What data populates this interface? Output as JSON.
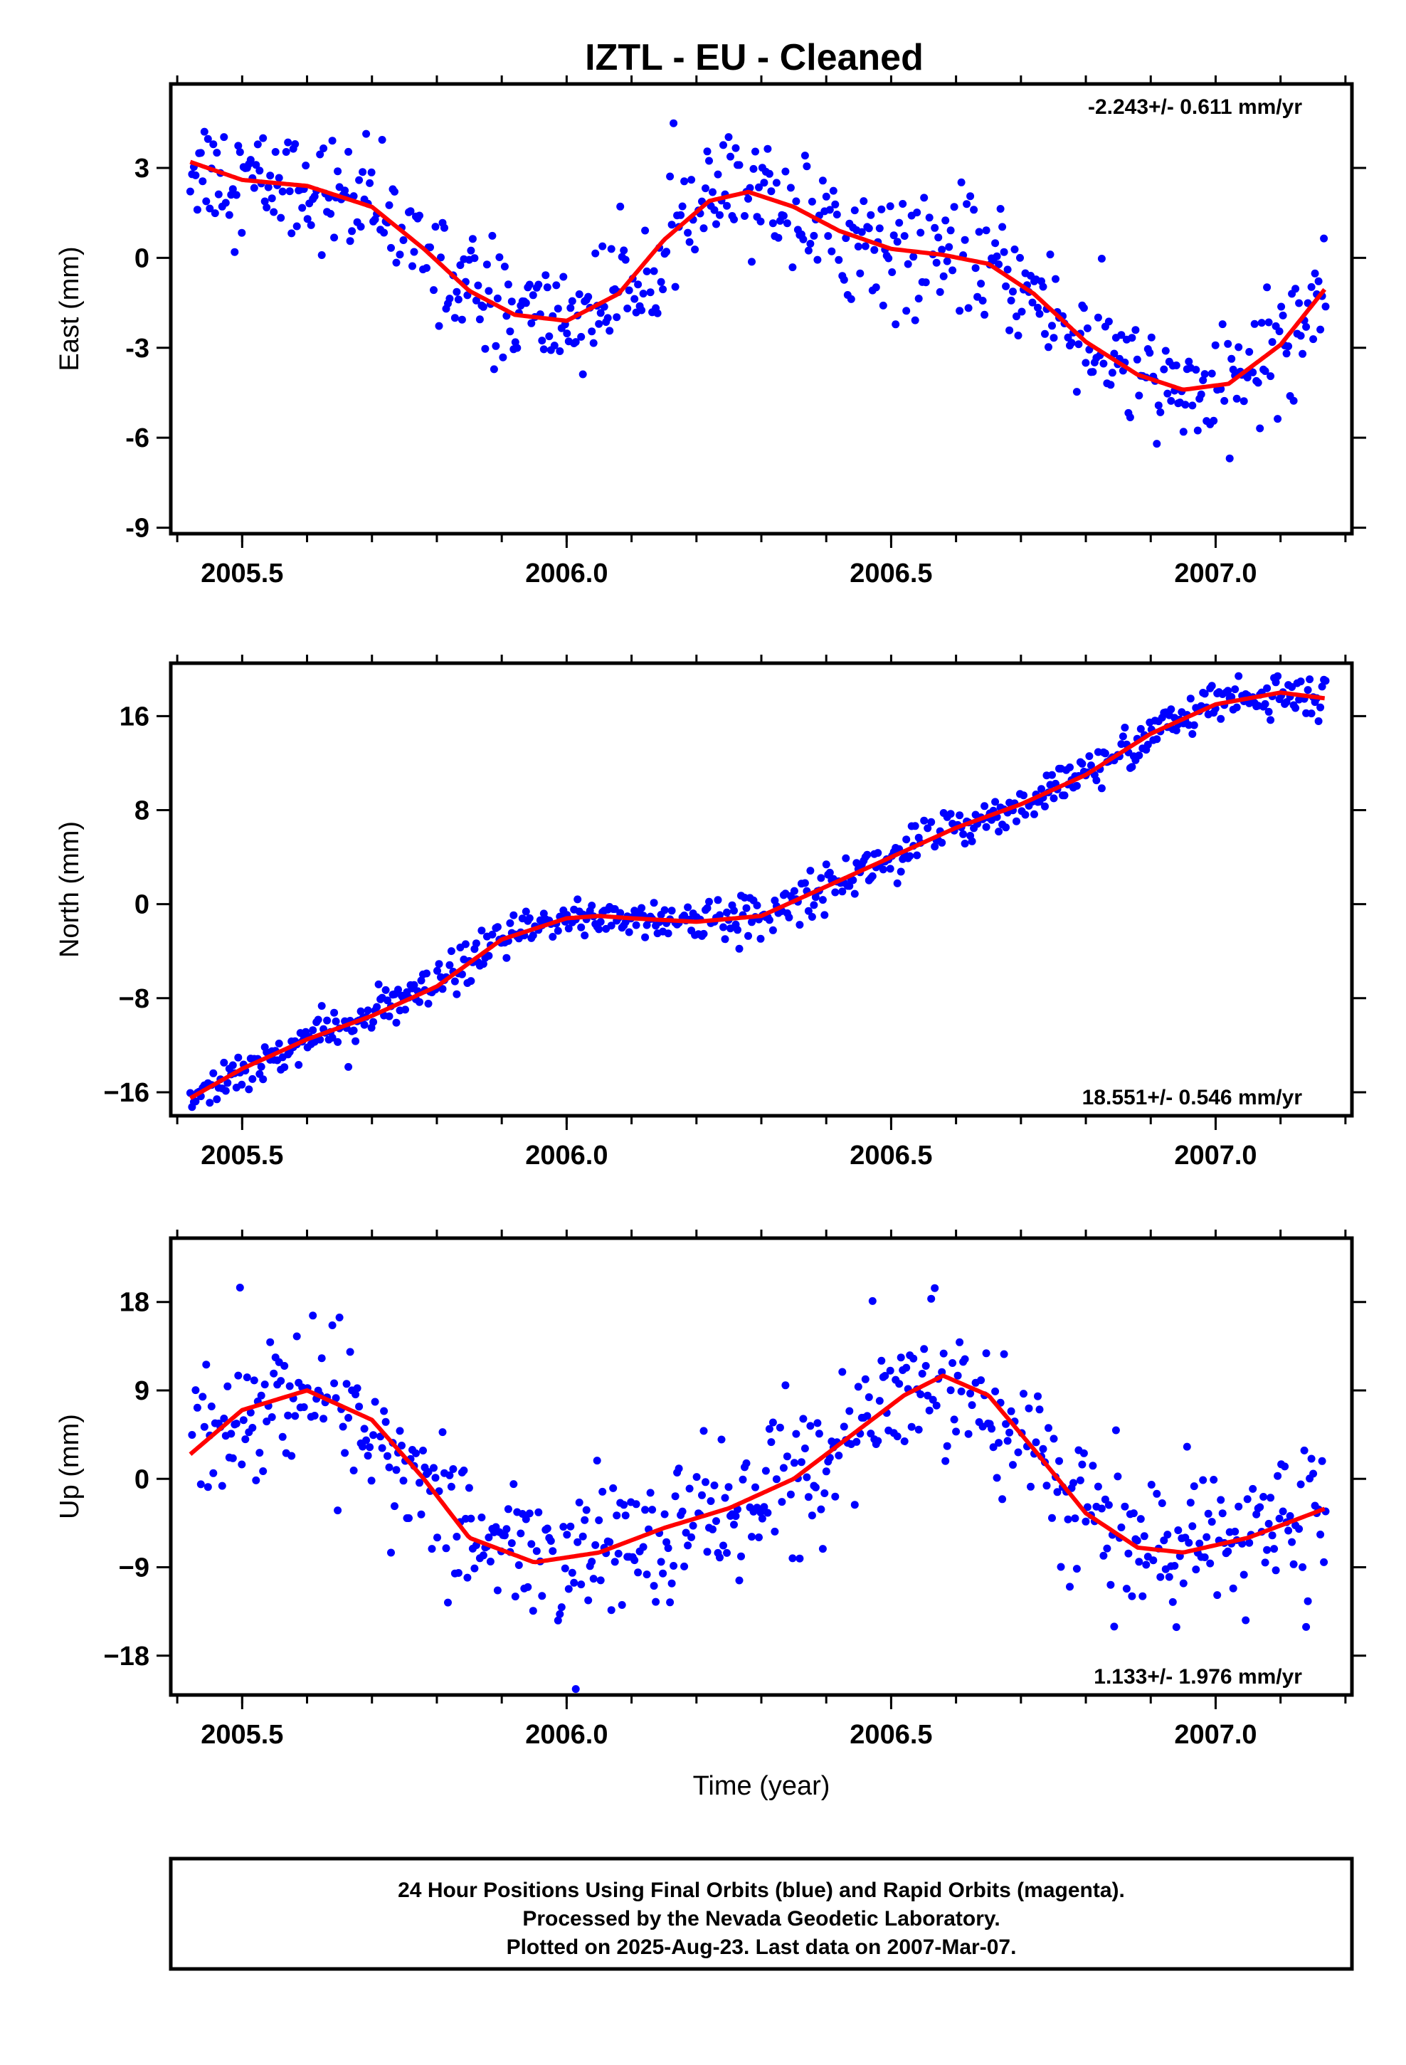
{
  "title": "IZTL  - EU - Cleaned",
  "footer": {
    "lines": [
      "24 Hour Positions Using Final Orbits (blue) and Rapid Orbits (magenta).",
      "Processed by the Nevada Geodetic Laboratory.",
      "Plotted on 2025-Aug-23. Last data on 2007-Mar-07."
    ]
  },
  "colors": {
    "points": "#0000ff",
    "fit": "#ff0000",
    "axis": "#000000"
  },
  "chart_data": [
    {
      "type": "scatter",
      "component": "east",
      "ylabel": "East (mm)",
      "xlabel": "",
      "rate_text": "-2.243+/- 0.611 mm/yr",
      "rate_position": "top-right",
      "xlim": [
        2005.39,
        2007.21
      ],
      "ylim": [
        -9.2,
        5.8
      ],
      "xticks": [
        2005.5,
        2006.0,
        2006.5,
        2007.0
      ],
      "xtick_labels": [
        "2005.5",
        "2006.0",
        "2006.5",
        "2007.0"
      ],
      "yticks": [
        -9,
        -6,
        -3,
        0,
        3
      ],
      "ytick_labels": [
        "-9",
        "-6",
        "-3",
        "0",
        "3"
      ],
      "grid": false,
      "fit_curve": {
        "x": [
          2005.42,
          2005.5,
          2005.6,
          2005.7,
          2005.78,
          2005.85,
          2005.92,
          2006.0,
          2006.08,
          2006.15,
          2006.22,
          2006.28,
          2006.35,
          2006.42,
          2006.5,
          2006.58,
          2006.65,
          2006.72,
          2006.8,
          2006.88,
          2006.95,
          2007.02,
          2007.1,
          2007.17
        ],
        "y": [
          3.2,
          2.6,
          2.4,
          1.7,
          0.3,
          -1.1,
          -1.9,
          -2.1,
          -1.2,
          0.6,
          1.9,
          2.2,
          1.7,
          0.9,
          0.3,
          0.1,
          -0.2,
          -1.2,
          -2.8,
          -3.9,
          -4.4,
          -4.2,
          -2.9,
          -1.0
        ]
      },
      "residual_sigma": 0.95
    },
    {
      "type": "scatter",
      "component": "north",
      "ylabel": "North (mm)",
      "xlabel": "",
      "rate_text": "18.551+/- 0.546 mm/yr",
      "rate_position": "bottom-right",
      "xlim": [
        2005.39,
        2007.21
      ],
      "ylim": [
        -18,
        20.5
      ],
      "xticks": [
        2005.5,
        2006.0,
        2006.5,
        2007.0
      ],
      "xtick_labels": [
        "2005.5",
        "2006.0",
        "2006.5",
        "2007.0"
      ],
      "yticks": [
        -16,
        -8,
        0,
        8,
        16
      ],
      "ytick_labels": [
        "−16",
        "−8",
        "0",
        "8",
        "16"
      ],
      "grid": false,
      "fit_curve": {
        "x": [
          2005.42,
          2005.5,
          2005.6,
          2005.7,
          2005.8,
          2005.9,
          2006.0,
          2006.05,
          2006.1,
          2006.2,
          2006.3,
          2006.4,
          2006.5,
          2006.6,
          2006.7,
          2006.8,
          2006.9,
          2007.0,
          2007.1,
          2007.17
        ],
        "y": [
          -16.5,
          -14.0,
          -11.5,
          -9.5,
          -7.0,
          -3.0,
          -1.2,
          -1.0,
          -1.2,
          -1.5,
          -1.0,
          1.5,
          4.0,
          6.5,
          8.5,
          11.0,
          14.5,
          17.0,
          18.0,
          17.5
        ]
      },
      "residual_sigma": 0.9
    },
    {
      "type": "scatter",
      "component": "up",
      "ylabel": "Up (mm)",
      "xlabel": "Time (year)",
      "rate_text": "1.133+/- 1.976 mm/yr",
      "rate_position": "bottom-right",
      "xlim": [
        2005.39,
        2007.21
      ],
      "ylim": [
        -22,
        24.5
      ],
      "xticks": [
        2005.5,
        2006.0,
        2006.5,
        2007.0
      ],
      "xtick_labels": [
        "2005.5",
        "2006.0",
        "2006.5",
        "2007.0"
      ],
      "yticks": [
        -18,
        -9,
        0,
        9,
        18
      ],
      "ytick_labels": [
        "−18",
        "−9",
        "0",
        "9",
        "18"
      ],
      "grid": false,
      "fit_curve": {
        "x": [
          2005.42,
          2005.5,
          2005.6,
          2005.7,
          2005.78,
          2005.85,
          2005.95,
          2006.05,
          2006.15,
          2006.25,
          2006.35,
          2006.45,
          2006.52,
          2006.58,
          2006.65,
          2006.72,
          2006.8,
          2006.88,
          2006.95,
          2007.05,
          2007.17
        ],
        "y": [
          2.5,
          7.0,
          9.0,
          6.0,
          0.0,
          -6.0,
          -8.5,
          -7.5,
          -5.0,
          -3.0,
          0.0,
          5.0,
          8.5,
          10.5,
          8.5,
          3.0,
          -3.5,
          -7.0,
          -7.5,
          -6.0,
          -3.0
        ]
      },
      "residual_sigma": 3.6
    }
  ]
}
